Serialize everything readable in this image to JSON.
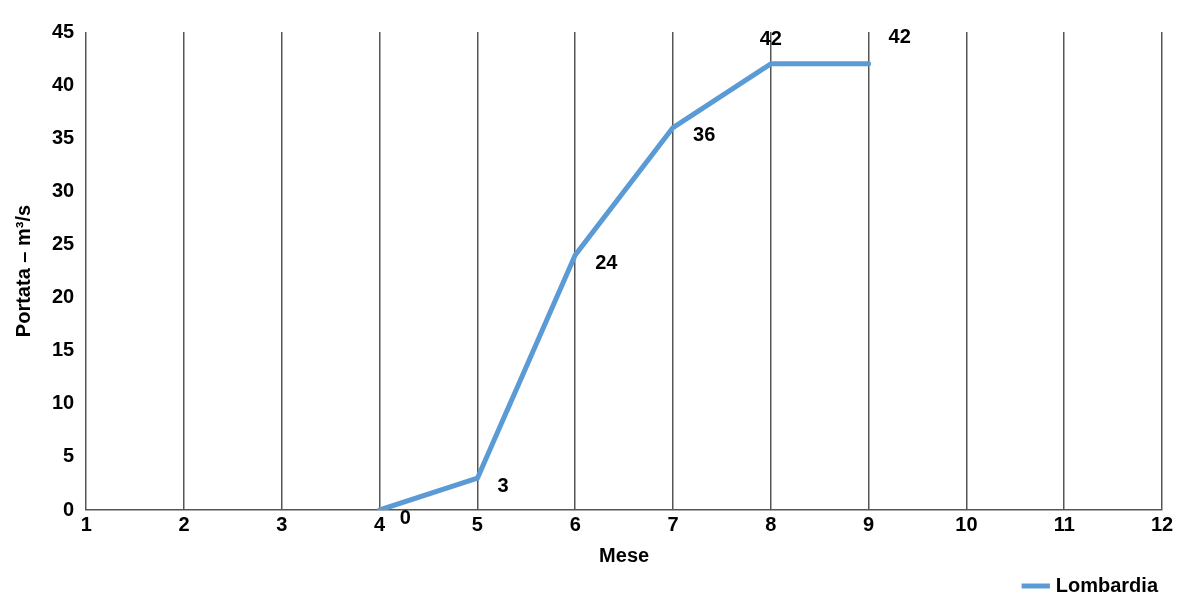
{
  "chart_data": {
    "type": "line",
    "xlabel": "Mese",
    "ylabel": "Portata – m³/s",
    "x": [
      4,
      5,
      6,
      7,
      8,
      9
    ],
    "series": [
      {
        "name": "Lombardia",
        "color": "#5b9bd5",
        "values": [
          0,
          3,
          24,
          36,
          42,
          42
        ]
      }
    ],
    "xlim": [
      1,
      12
    ],
    "xticks": [
      1,
      2,
      3,
      4,
      5,
      6,
      7,
      8,
      9,
      10,
      11,
      12
    ],
    "ylim": [
      0,
      45
    ],
    "yticks": [
      0,
      5,
      10,
      15,
      20,
      25,
      30,
      35,
      40,
      45
    ],
    "grid": "x",
    "legend": "bottom right",
    "data_labels": true,
    "marker": "none",
    "line_style": "solid"
  }
}
